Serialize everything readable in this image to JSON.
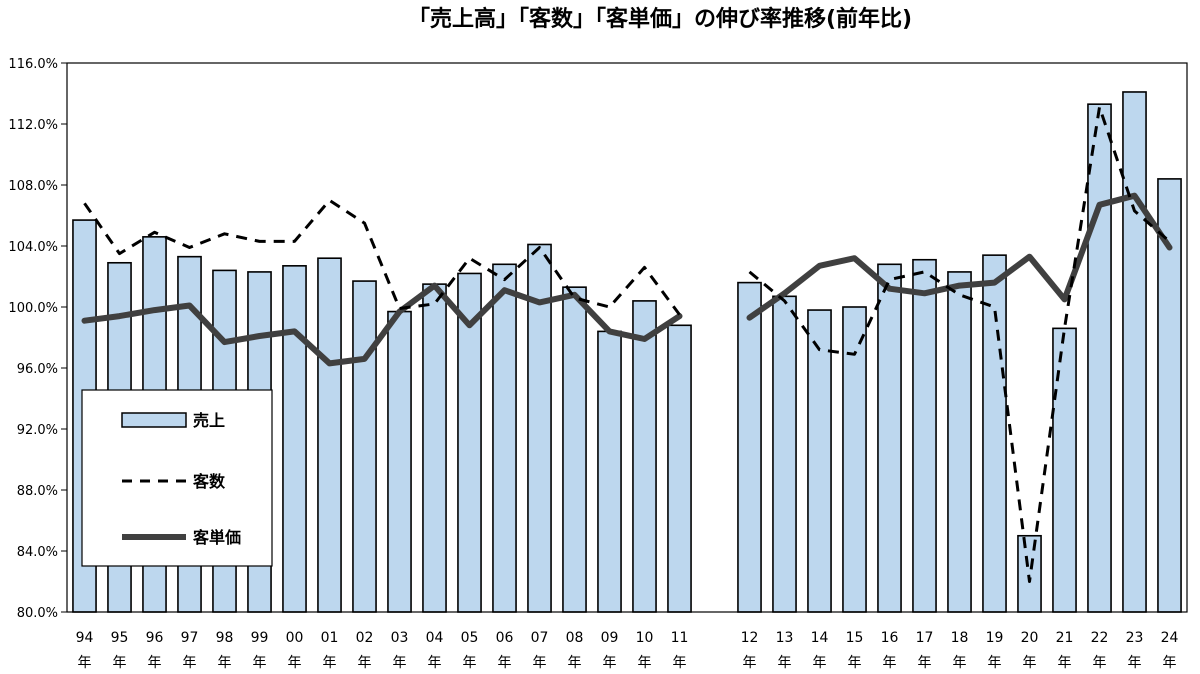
{
  "chart_data": {
    "type": "bar",
    "title": "「売上高」「客数」「客単価」の伸び率推移(前年比)",
    "xlabel": "",
    "ylabel": "",
    "ylim": [
      80,
      116
    ],
    "yticks": [
      "116.0%",
      "112.0%",
      "108.0%",
      "104.0%",
      "100.0%",
      "96.0%",
      "92.0%",
      "88.0%",
      "84.0%",
      "80.0%"
    ],
    "year_suffix": "年",
    "categories": [
      "94",
      "95",
      "96",
      "97",
      "98",
      "99",
      "00",
      "01",
      "02",
      "03",
      "04",
      "05",
      "06",
      "07",
      "08",
      "09",
      "10",
      "11",
      "",
      "12",
      "13",
      "14",
      "15",
      "16",
      "17",
      "18",
      "19",
      "20",
      "21",
      "22",
      "23",
      "24"
    ],
    "series": [
      {
        "name": "売上",
        "kind": "bar",
        "color": "#bdd7ee",
        "values": [
          105.7,
          102.9,
          104.6,
          103.3,
          102.4,
          102.3,
          102.7,
          103.2,
          101.7,
          99.7,
          101.5,
          102.2,
          102.8,
          104.1,
          101.3,
          98.4,
          100.4,
          98.8,
          null,
          101.6,
          100.7,
          99.8,
          100.0,
          102.8,
          103.1,
          102.3,
          103.4,
          85.0,
          98.6,
          113.3,
          114.1,
          108.4
        ]
      },
      {
        "name": "客数",
        "kind": "dashed-line",
        "color": "#000000",
        "values": [
          106.8,
          103.5,
          104.9,
          103.9,
          104.8,
          104.3,
          104.3,
          107.0,
          105.5,
          99.9,
          100.2,
          103.2,
          101.8,
          103.9,
          100.6,
          100.0,
          102.6,
          99.5,
          null,
          102.3,
          100.4,
          97.2,
          96.9,
          101.8,
          102.3,
          100.8,
          100.0,
          82.0,
          98.6,
          113.1,
          106.3,
          104.3
        ]
      },
      {
        "name": "客単価",
        "kind": "line",
        "color": "#404040",
        "values": [
          99.1,
          99.4,
          99.8,
          100.1,
          97.7,
          98.1,
          98.4,
          96.3,
          96.6,
          99.7,
          101.4,
          98.8,
          101.1,
          100.3,
          100.8,
          98.4,
          97.9,
          99.4,
          null,
          99.3,
          100.9,
          102.7,
          103.2,
          101.2,
          100.9,
          101.4,
          101.6,
          103.3,
          100.5,
          106.7,
          107.3,
          103.9
        ]
      }
    ],
    "legend": {
      "placement": "left-middle"
    },
    "grid": false
  }
}
